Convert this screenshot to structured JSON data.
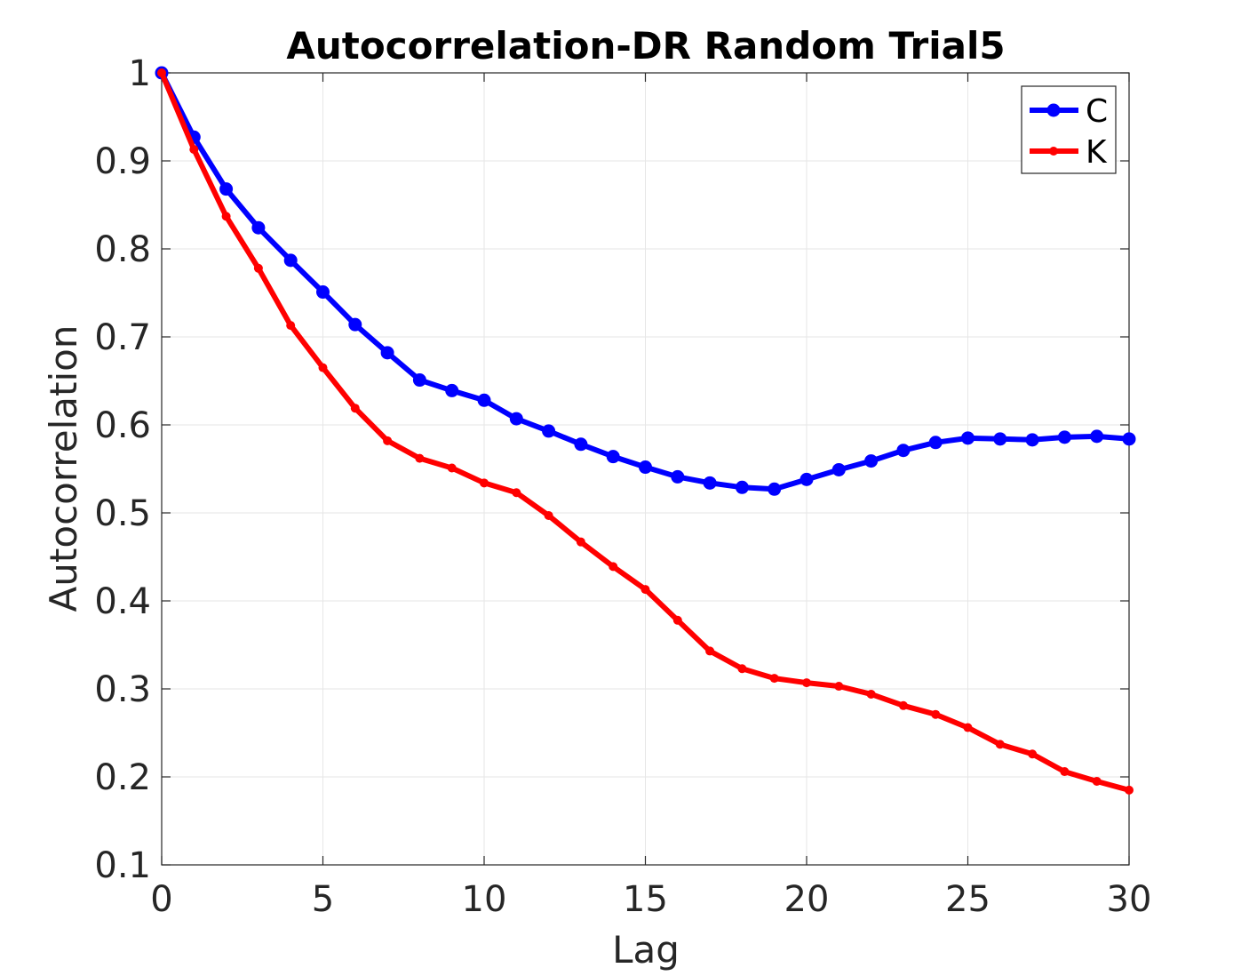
{
  "chart_data": {
    "type": "line",
    "title": "Autocorrelation-DR Random Trial5",
    "xlabel": "Lag",
    "ylabel": "Autocorrelation",
    "xlim": [
      0,
      30
    ],
    "ylim": [
      0.1,
      1
    ],
    "xticks": [
      0,
      5,
      10,
      15,
      20,
      25,
      30
    ],
    "xtick_labels": [
      "0",
      "5",
      "10",
      "15",
      "20",
      "25",
      "30"
    ],
    "yticks": [
      0.1,
      0.2,
      0.3,
      0.4,
      0.5,
      0.6,
      0.7,
      0.8,
      0.9,
      1
    ],
    "ytick_labels": [
      "0.1",
      "0.2",
      "0.3",
      "0.4",
      "0.5",
      "0.6",
      "0.7",
      "0.8",
      "0.9",
      "1"
    ],
    "grid": true,
    "legend_position": "top-right",
    "x": [
      0,
      1,
      2,
      3,
      4,
      5,
      6,
      7,
      8,
      9,
      10,
      11,
      12,
      13,
      14,
      15,
      16,
      17,
      18,
      19,
      20,
      21,
      22,
      23,
      24,
      25,
      26,
      27,
      28,
      29,
      30
    ],
    "series": [
      {
        "name": "C",
        "color": "#0000ff",
        "marker": "large-dot",
        "values": [
          1.0,
          0.927,
          0.868,
          0.824,
          0.787,
          0.751,
          0.714,
          0.682,
          0.651,
          0.639,
          0.628,
          0.607,
          0.593,
          0.578,
          0.564,
          0.552,
          0.541,
          0.534,
          0.529,
          0.527,
          0.538,
          0.549,
          0.559,
          0.571,
          0.58,
          0.585,
          0.584,
          0.583,
          0.586,
          0.587,
          0.584
        ]
      },
      {
        "name": "K",
        "color": "#ff0000",
        "marker": "small-dot",
        "values": [
          1.0,
          0.913,
          0.837,
          0.778,
          0.713,
          0.665,
          0.619,
          0.582,
          0.562,
          0.551,
          0.534,
          0.523,
          0.497,
          0.467,
          0.439,
          0.413,
          0.378,
          0.343,
          0.323,
          0.312,
          0.307,
          0.303,
          0.294,
          0.281,
          0.271,
          0.256,
          0.237,
          0.226,
          0.206,
          0.195,
          0.185
        ]
      }
    ]
  }
}
